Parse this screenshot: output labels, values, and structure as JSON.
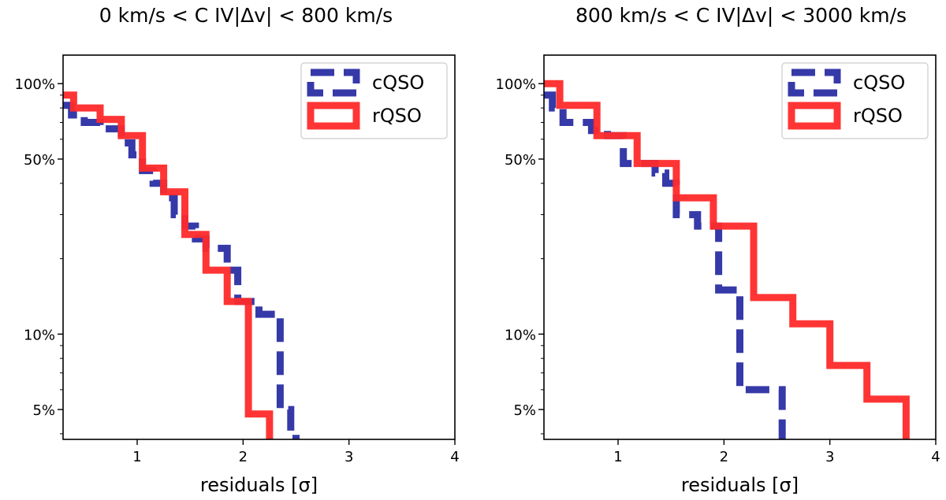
{
  "colors": {
    "cQSO": "#2b2ea3",
    "rQSO": "#ff2a2a"
  },
  "chart_data": [
    {
      "type": "line",
      "title": "0 km/s < C IV|Δv| < 800 km/s",
      "xlabel": "residuals [σ]",
      "ylabel": "",
      "xscale": "linear",
      "yscale": "log",
      "xlim": [
        0.3,
        4
      ],
      "ylim": [
        3.8,
        130
      ],
      "xticks": [
        {
          "value": 1,
          "label": "1"
        },
        {
          "value": 2,
          "label": "2"
        },
        {
          "value": 3,
          "label": "3"
        },
        {
          "value": 4,
          "label": "4"
        }
      ],
      "yticks": [
        {
          "value": 100,
          "label": "100%"
        },
        {
          "value": 50,
          "label": "50%"
        },
        {
          "value": 10,
          "label": "10%"
        },
        {
          "value": 5,
          "label": "5%"
        }
      ],
      "legend_position": "top-right",
      "series": [
        {
          "name": "cQSO",
          "style": "dashed",
          "step_x": [
            0.3,
            0.38,
            0.5,
            0.65,
            0.85,
            0.95,
            1.05,
            1.15,
            1.25,
            1.35,
            1.45,
            1.55,
            1.65,
            1.85,
            1.95,
            2.15,
            2.35,
            2.45,
            2.5
          ],
          "step_y": [
            82,
            75,
            70,
            66,
            58,
            52,
            45,
            40,
            35,
            30,
            27,
            24,
            22,
            18,
            13.5,
            12,
            5,
            4,
            3.8
          ]
        },
        {
          "name": "rQSO",
          "style": "solid",
          "step_x": [
            0.3,
            0.4,
            0.65,
            0.85,
            1.05,
            1.25,
            1.45,
            1.65,
            1.85,
            2.05,
            2.25,
            2.27
          ],
          "step_y": [
            90,
            80,
            72,
            62,
            46,
            37,
            25,
            18,
            13.5,
            4.8,
            3.8,
            3.8
          ]
        }
      ]
    },
    {
      "type": "line",
      "title": "800 km/s < C IV|Δv| < 3000 km/s",
      "xlabel": "residuals [σ]",
      "ylabel": "",
      "xscale": "linear",
      "yscale": "log",
      "xlim": [
        0.3,
        4
      ],
      "ylim": [
        3.8,
        130
      ],
      "xticks": [
        {
          "value": 1,
          "label": "1"
        },
        {
          "value": 2,
          "label": "2"
        },
        {
          "value": 3,
          "label": "3"
        },
        {
          "value": 4,
          "label": "4"
        }
      ],
      "yticks": [
        {
          "value": 100,
          "label": "100%"
        },
        {
          "value": 50,
          "label": "50%"
        },
        {
          "value": 10,
          "label": "10%"
        },
        {
          "value": 5,
          "label": "5%"
        }
      ],
      "legend_position": "top-right",
      "series": [
        {
          "name": "cQSO",
          "style": "dashed",
          "step_x": [
            0.3,
            0.38,
            0.48,
            0.75,
            0.9,
            1.05,
            1.35,
            1.45,
            1.55,
            1.75,
            1.95,
            2.15,
            2.55,
            2.57
          ],
          "step_y": [
            90,
            80,
            70,
            65,
            62,
            48,
            44,
            40,
            30,
            27,
            15,
            6,
            3.8,
            3.8
          ]
        },
        {
          "name": "rQSO",
          "style": "solid",
          "step_x": [
            0.3,
            0.45,
            0.8,
            1.18,
            1.55,
            1.9,
            2.28,
            2.65,
            3.0,
            3.35,
            3.72,
            3.74
          ],
          "step_y": [
            100,
            82,
            62,
            48,
            35,
            27,
            14,
            11,
            7.5,
            5.5,
            3.8,
            3.8
          ]
        }
      ]
    }
  ]
}
